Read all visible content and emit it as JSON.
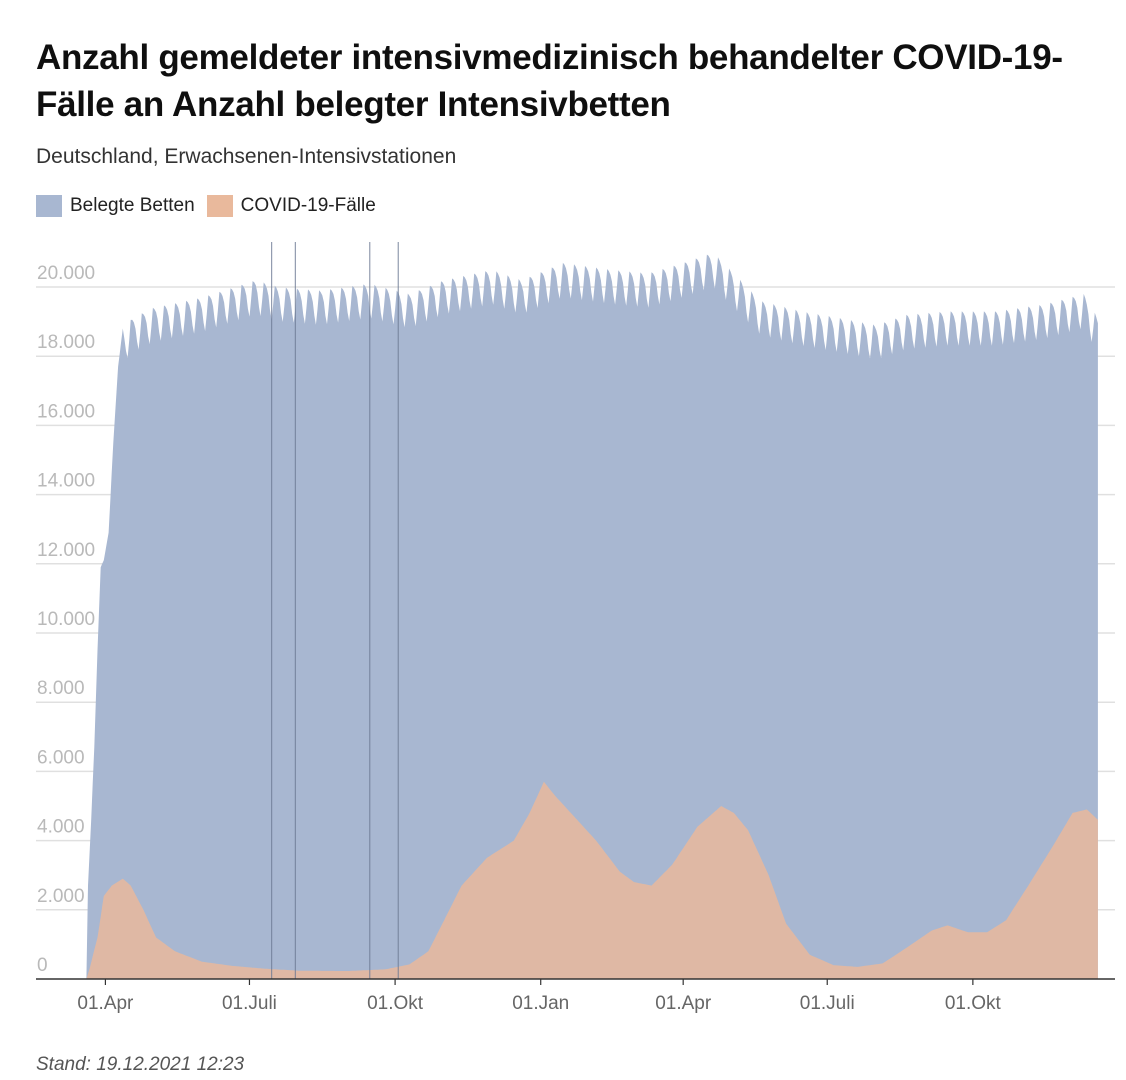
{
  "title": "Anzahl gemeldeter intensivmedizinisch behandelter COVID-19-Fälle an Anzahl belegter Intensivbetten",
  "subtitle": "Deutschland, Erwachsenen-Intensivstationen",
  "footer": "Stand: 19.12.2021 12:23",
  "colors": {
    "beds": "#a8b7d1",
    "covid": "#e9b99c",
    "grid": "#e0e0e0",
    "marker": "#6c7a93"
  },
  "chart_data": {
    "type": "area",
    "title": "Anzahl gemeldeter intensivmedizinisch behandelter COVID-19-Fälle an Anzahl belegter Intensivbetten",
    "subtitle": "Deutschland, Erwachsenen-Intensivstationen",
    "x_range": [
      "2020-03-20",
      "2021-12-19"
    ],
    "ylim": [
      0,
      21000
    ],
    "y_ticks": [
      "20.000",
      "18.000",
      "16.000",
      "14.000",
      "12.000",
      "10.000",
      "8.000",
      "6.000",
      "4.000",
      "2.000",
      "0"
    ],
    "y_tick_values": [
      20000,
      18000,
      16000,
      14000,
      12000,
      10000,
      8000,
      6000,
      4000,
      2000,
      0
    ],
    "x_ticks": [
      {
        "label": "01.Apr",
        "date": "2020-04-01"
      },
      {
        "label": "01.Juli",
        "date": "2020-07-01"
      },
      {
        "label": "01.Okt",
        "date": "2020-10-01"
      },
      {
        "label": "01.Jan",
        "date": "2021-01-01"
      },
      {
        "label": "01.Apr",
        "date": "2021-04-01"
      },
      {
        "label": "01.Juli",
        "date": "2021-07-01"
      },
      {
        "label": "01.Okt",
        "date": "2021-10-01"
      }
    ],
    "vertical_markers": [
      "2020-07-15",
      "2020-07-30",
      "2020-09-15",
      "2020-10-03"
    ],
    "series": [
      {
        "name": "Belegte Betten",
        "color": "#a8b7d1",
        "weekly_dip": 1000,
        "points": [
          [
            "2020-03-20",
            0
          ],
          [
            "2020-03-21",
            2700
          ],
          [
            "2020-03-23",
            4600
          ],
          [
            "2020-03-25",
            6700
          ],
          [
            "2020-03-27",
            9500
          ],
          [
            "2020-03-29",
            11900
          ],
          [
            "2020-03-31",
            12100
          ],
          [
            "2020-04-03",
            12900
          ],
          [
            "2020-04-06",
            15500
          ],
          [
            "2020-04-09",
            17700
          ],
          [
            "2020-04-12",
            18800
          ],
          [
            "2020-04-18",
            19100
          ],
          [
            "2020-05-01",
            19400
          ],
          [
            "2020-06-01",
            19700
          ],
          [
            "2020-07-05",
            20200
          ],
          [
            "2020-07-20",
            20000
          ],
          [
            "2020-08-15",
            19900
          ],
          [
            "2020-09-15",
            20100
          ],
          [
            "2020-10-10",
            19800
          ],
          [
            "2020-11-01",
            20200
          ],
          [
            "2020-12-01",
            20500
          ],
          [
            "2020-12-20",
            20200
          ],
          [
            "2021-01-15",
            20700
          ],
          [
            "2021-02-15",
            20500
          ],
          [
            "2021-03-10",
            20400
          ],
          [
            "2021-04-01",
            20700
          ],
          [
            "2021-04-20",
            21000
          ],
          [
            "2021-05-05",
            20300
          ],
          [
            "2021-05-20",
            19600
          ],
          [
            "2021-06-15",
            19300
          ],
          [
            "2021-07-10",
            19100
          ],
          [
            "2021-08-01",
            18900
          ],
          [
            "2021-08-20",
            19200
          ],
          [
            "2021-09-15",
            19300
          ],
          [
            "2021-10-15",
            19300
          ],
          [
            "2021-11-15",
            19500
          ],
          [
            "2021-12-10",
            19800
          ],
          [
            "2021-12-19",
            19100
          ]
        ]
      },
      {
        "name": "COVID-19-Fälle",
        "color": "#e9b99c",
        "points": [
          [
            "2020-03-20",
            0
          ],
          [
            "2020-03-22",
            300
          ],
          [
            "2020-03-27",
            1200
          ],
          [
            "2020-03-31",
            2400
          ],
          [
            "2020-04-05",
            2700
          ],
          [
            "2020-04-12",
            2900
          ],
          [
            "2020-04-17",
            2700
          ],
          [
            "2020-04-25",
            2000
          ],
          [
            "2020-05-03",
            1200
          ],
          [
            "2020-05-15",
            800
          ],
          [
            "2020-06-01",
            500
          ],
          [
            "2020-06-20",
            380
          ],
          [
            "2020-07-10",
            300
          ],
          [
            "2020-08-01",
            240
          ],
          [
            "2020-09-01",
            230
          ],
          [
            "2020-09-25",
            280
          ],
          [
            "2020-10-10",
            420
          ],
          [
            "2020-10-22",
            800
          ],
          [
            "2020-11-01",
            1700
          ],
          [
            "2020-11-12",
            2700
          ],
          [
            "2020-11-28",
            3500
          ],
          [
            "2020-12-15",
            4000
          ],
          [
            "2020-12-25",
            4800
          ],
          [
            "2021-01-03",
            5700
          ],
          [
            "2021-01-10",
            5300
          ],
          [
            "2021-01-20",
            4800
          ],
          [
            "2021-02-05",
            4000
          ],
          [
            "2021-02-20",
            3100
          ],
          [
            "2021-03-01",
            2800
          ],
          [
            "2021-03-12",
            2700
          ],
          [
            "2021-03-25",
            3300
          ],
          [
            "2021-04-10",
            4400
          ],
          [
            "2021-04-25",
            5000
          ],
          [
            "2021-05-03",
            4800
          ],
          [
            "2021-05-12",
            4300
          ],
          [
            "2021-05-25",
            3000
          ],
          [
            "2021-06-05",
            1600
          ],
          [
            "2021-06-20",
            700
          ],
          [
            "2021-07-05",
            400
          ],
          [
            "2021-07-20",
            350
          ],
          [
            "2021-08-05",
            450
          ],
          [
            "2021-08-20",
            900
          ],
          [
            "2021-09-05",
            1400
          ],
          [
            "2021-09-15",
            1550
          ],
          [
            "2021-09-28",
            1350
          ],
          [
            "2021-10-10",
            1350
          ],
          [
            "2021-10-22",
            1700
          ],
          [
            "2021-11-05",
            2700
          ],
          [
            "2021-11-20",
            3800
          ],
          [
            "2021-12-03",
            4800
          ],
          [
            "2021-12-12",
            4900
          ],
          [
            "2021-12-19",
            4600
          ]
        ]
      }
    ]
  }
}
